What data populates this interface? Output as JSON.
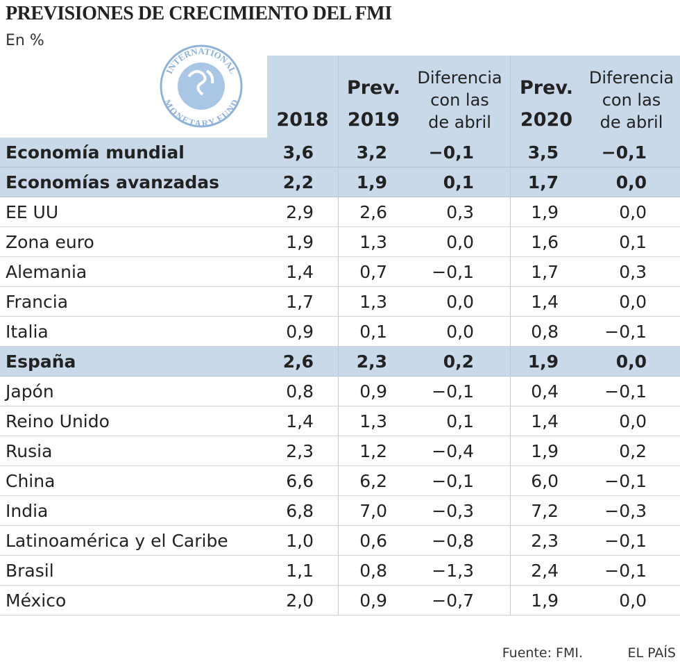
{
  "header": {
    "title": "PREVISIONES DE CRECIMIENTO DEL FMI",
    "subtitle": "En %"
  },
  "logo": {
    "top": "INTERNATIONAL",
    "bottom": "MONETARY FUND"
  },
  "table": {
    "columns": [
      {
        "lines": [
          "2018"
        ]
      },
      {
        "lines": [
          "Prev.",
          "2019"
        ]
      },
      {
        "lines": [
          "Diferencia",
          "con las",
          "de abril"
        ]
      },
      {
        "lines": [
          "Prev.",
          "2020"
        ]
      },
      {
        "lines": [
          "Diferencia",
          "con las",
          "de abril"
        ]
      }
    ],
    "rows": [
      {
        "label": "Economía mundial",
        "highlight": true,
        "cells": [
          "3,6",
          "3,2",
          "−0,1",
          "3,5",
          "−0,1"
        ]
      },
      {
        "label": "Economías avanzadas",
        "highlight": true,
        "cells": [
          "2,2",
          "1,9",
          "0,1",
          "1,7",
          "0,0"
        ]
      },
      {
        "label": "EE UU",
        "cells": [
          "2,9",
          "2,6",
          "0,3",
          "1,9",
          "0,0"
        ]
      },
      {
        "label": "Zona euro",
        "cells": [
          "1,9",
          "1,3",
          "0,0",
          "1,6",
          "0,1"
        ]
      },
      {
        "label": "Alemania",
        "cells": [
          "1,4",
          "0,7",
          "−0,1",
          "1,7",
          "0,3"
        ]
      },
      {
        "label": "Francia",
        "cells": [
          "1,7",
          "1,3",
          "0,0",
          "1,4",
          "0,0"
        ]
      },
      {
        "label": "Italia",
        "cells": [
          "0,9",
          "0,1",
          "0,0",
          "0,8",
          "−0,1"
        ]
      },
      {
        "label": "España",
        "highlight": true,
        "cells": [
          "2,6",
          "2,3",
          "0,2",
          "1,9",
          "0,0"
        ]
      },
      {
        "label": "Japón",
        "cells": [
          "0,8",
          "0,9",
          "−0,1",
          "0,4",
          "−0,1"
        ]
      },
      {
        "label": "Reino Unido",
        "cells": [
          "1,4",
          "1,3",
          "0,1",
          "1,4",
          "0,0"
        ]
      },
      {
        "label": "Rusia",
        "cells": [
          "2,3",
          "1,2",
          "−0,4",
          "1,9",
          "0,2"
        ]
      },
      {
        "label": "China",
        "cells": [
          "6,6",
          "6,2",
          "−0,1",
          "6,0",
          "−0,1"
        ]
      },
      {
        "label": "India",
        "cells": [
          "6,8",
          "7,0",
          "−0,3",
          "7,2",
          "−0,3"
        ]
      },
      {
        "label": "Latinoamérica y el Caribe",
        "cells": [
          "1,0",
          "0,6",
          "−0,8",
          "2,3",
          "−0,1"
        ]
      },
      {
        "label": "Brasil",
        "cells": [
          "1,1",
          "0,8",
          "−1,3",
          "2,4",
          "−0,1"
        ]
      },
      {
        "label": "México",
        "cells": [
          "2,0",
          "0,9",
          "−0,7",
          "1,9",
          "0,0"
        ]
      }
    ]
  },
  "footer": {
    "source": "Fuente: FMI.",
    "brand": "EL PAÍS"
  }
}
